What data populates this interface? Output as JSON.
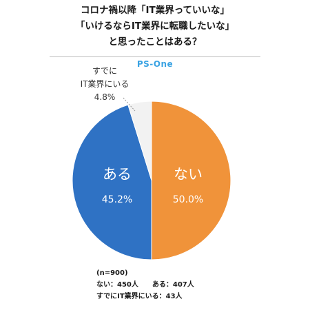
{
  "title_lines": [
    "コロナ禍以降「IT業界っていいな」",
    "「いけるならIT業界に転職したいな」",
    "と思ったことはある？"
  ],
  "brand": "PS-One",
  "chart_data": {
    "type": "pie",
    "slices": [
      {
        "label": "ない",
        "value": 50.0,
        "value_label": "50.0%",
        "color": "#f0933a"
      },
      {
        "label": "ある",
        "value": 45.2,
        "value_label": "45.2%",
        "color": "#2f72c4"
      },
      {
        "label": "すでにIT業界にいる",
        "value": 4.8,
        "value_label": "4.8%",
        "color": "#f2f2f2"
      }
    ],
    "small_slice_label_lines": [
      "すでに",
      "IT業界にいる",
      "4.8%"
    ],
    "notes": [
      "(n=900)",
      "ない：450人　　ある：407人",
      "すでにIT業界にいる：43人"
    ]
  }
}
